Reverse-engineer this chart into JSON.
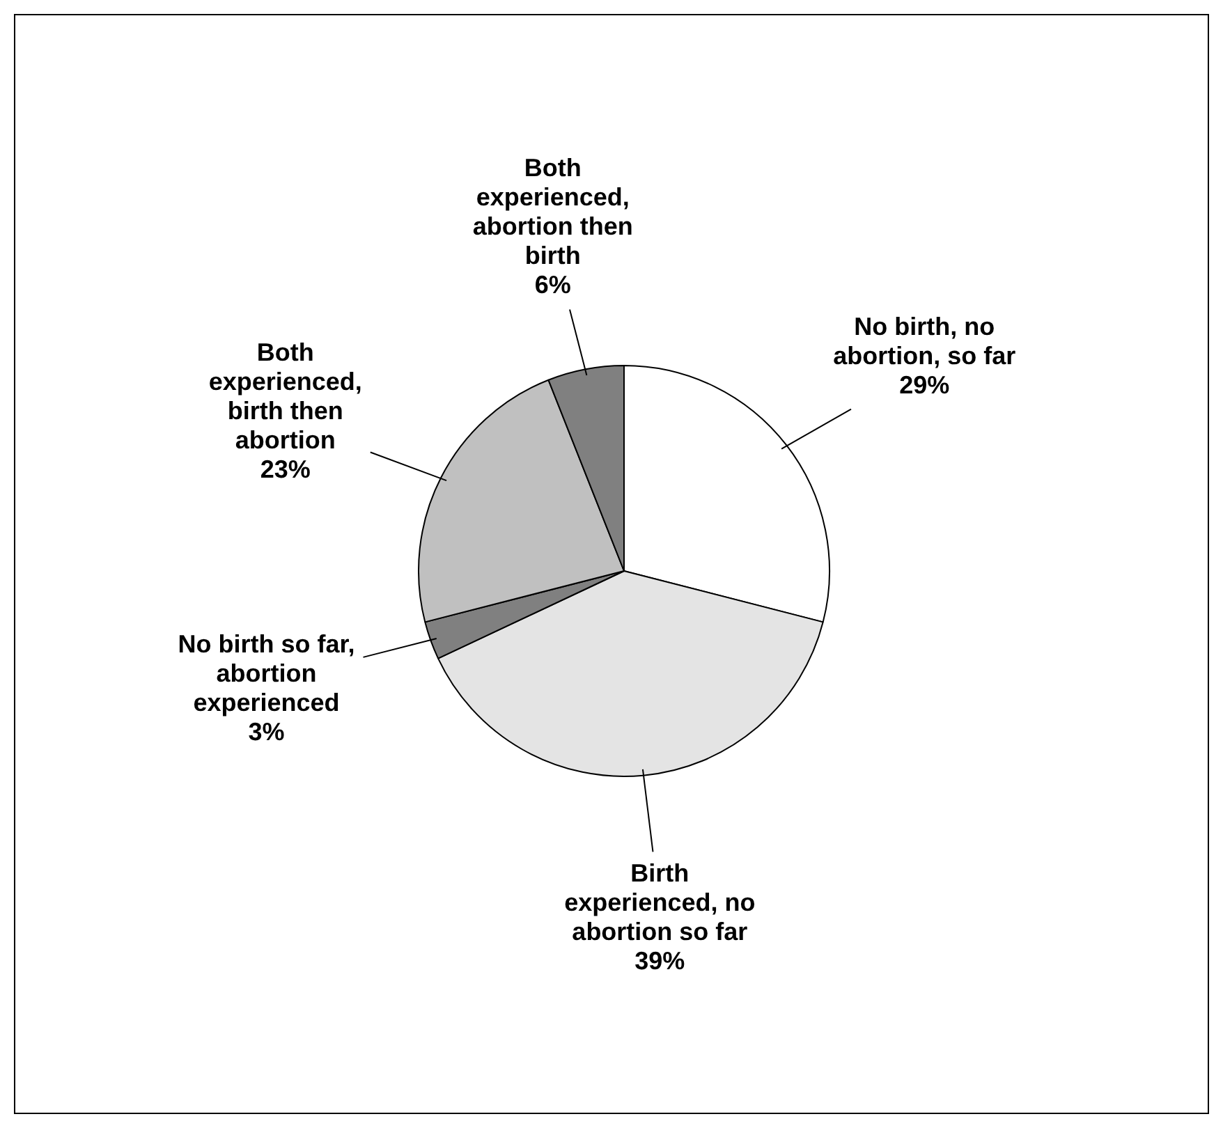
{
  "chart_data": {
    "type": "pie",
    "categories": [
      "No birth, no abortion, so far",
      "Birth experienced, no abortion so far",
      "No birth so far, abortion experienced",
      "Both experienced, birth then abortion",
      "Both experienced, abortion then birth"
    ],
    "values": [
      29,
      39,
      3,
      23,
      6
    ],
    "value_labels": [
      "29%",
      "39%",
      "3%",
      "23%",
      "6%"
    ],
    "colors": [
      "#ffffff",
      "#e4e4e4",
      "#808080",
      "#c0c0c0",
      "#808080"
    ],
    "legend": false
  }
}
